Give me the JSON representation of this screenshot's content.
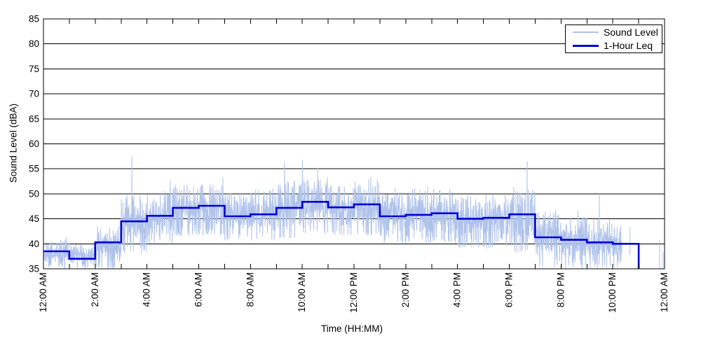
{
  "chart_data": {
    "type": "line",
    "title": "",
    "xlabel": "Time (HH:MM)",
    "ylabel": "Sound Level (dBA)",
    "ylim": [
      35,
      85
    ],
    "xlim_hours": [
      0,
      24
    ],
    "grid": true,
    "legend_position": "top-right",
    "x_tick_labels": [
      "12:00 AM",
      "2:00 AM",
      "4:00 AM",
      "6:00 AM",
      "8:00 AM",
      "10:00 AM",
      "12:00 PM",
      "2:00 PM",
      "4:00 PM",
      "6:00 PM",
      "8:00 PM",
      "10:00 PM",
      "12:00 AM"
    ],
    "y_tick_labels": [
      35,
      40,
      45,
      50,
      55,
      60,
      65,
      70,
      75,
      80,
      85
    ],
    "x_minor_tick_every_hours": 1,
    "series": [
      {
        "name": "Sound Level",
        "style": "noisy-trace",
        "color": "#AFC2EB",
        "hourly_band": [
          [
            35,
            41
          ],
          [
            35,
            40
          ],
          [
            35,
            43.5
          ],
          [
            38,
            50
          ],
          [
            40,
            50.5
          ],
          [
            41.5,
            52
          ],
          [
            41.5,
            52
          ],
          [
            40.5,
            50.5
          ],
          [
            40.5,
            51
          ],
          [
            41,
            52.5
          ],
          [
            42,
            53
          ],
          [
            41.5,
            52
          ],
          [
            41.5,
            52.5
          ],
          [
            40,
            50.5
          ],
          [
            40,
            51
          ],
          [
            40,
            51
          ],
          [
            39,
            50
          ],
          [
            39,
            50
          ],
          [
            38,
            51
          ],
          [
            35,
            46.5
          ],
          [
            35,
            46
          ],
          [
            35,
            45
          ],
          [
            35,
            44
          ],
          null
        ],
        "spikes": [
          {
            "hour": 3.42,
            "dba": 57.4
          },
          {
            "hour": 4.9,
            "dba": 52.7
          },
          {
            "hour": 6.93,
            "dba": 53.3
          },
          {
            "hour": 9.32,
            "dba": 56.5
          },
          {
            "hour": 10.01,
            "dba": 56.8
          },
          {
            "hour": 10.6,
            "dba": 55.1
          },
          {
            "hour": 12.65,
            "dba": 53.4
          },
          {
            "hour": 14.84,
            "dba": 51.5
          },
          {
            "hour": 18.69,
            "dba": 56.5
          },
          {
            "hour": 21.48,
            "dba": 50.0
          },
          {
            "hour": 23.81,
            "dba": 40.7
          },
          {
            "hour": 23.94,
            "dba": 38.3
          }
        ],
        "dense_until_hour": 22.35,
        "sparse_until_hour": 22.85,
        "sparse_density": 0.3
      },
      {
        "name": "1-Hour Leq",
        "style": "step",
        "color": "#0000D8",
        "hours": [
          "12 AM",
          "1 AM",
          "2 AM",
          "3 AM",
          "4 AM",
          "5 AM",
          "6 AM",
          "7 AM",
          "8 AM",
          "9 AM",
          "10 AM",
          "11 AM",
          "12 PM",
          "1 PM",
          "2 PM",
          "3 PM",
          "4 PM",
          "5 PM",
          "6 PM",
          "7 PM",
          "8 PM",
          "9 PM",
          "10 PM",
          "11 PM"
        ],
        "values": [
          38.5,
          37.0,
          40.3,
          44.5,
          45.6,
          47.2,
          47.6,
          45.5,
          45.9,
          47.2,
          48.4,
          47.3,
          47.9,
          45.5,
          45.8,
          46.1,
          45.0,
          45.2,
          45.9,
          41.3,
          40.8,
          40.3,
          40.0,
          null
        ]
      }
    ]
  }
}
